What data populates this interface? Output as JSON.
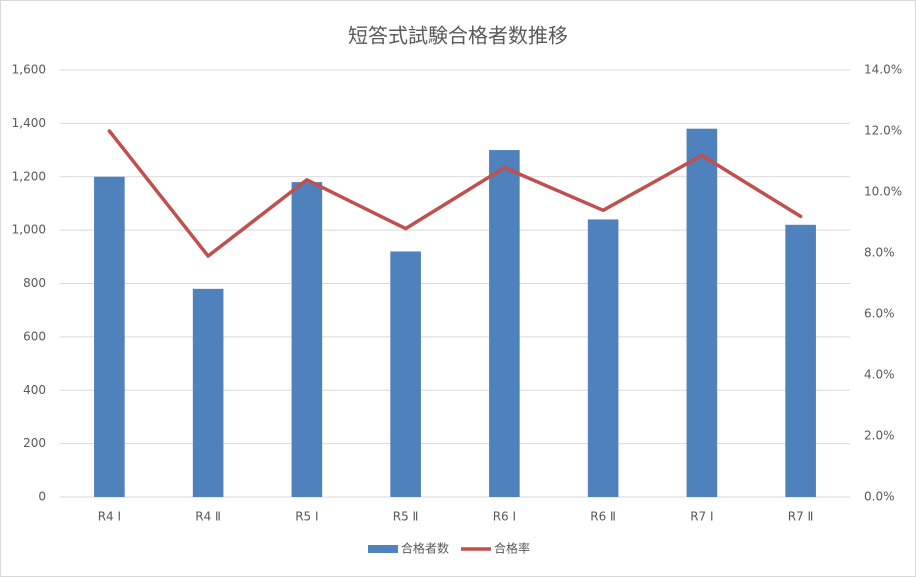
{
  "chart_data": {
    "type": "combo",
    "title": "短答式試験合格者数推移",
    "categories": [
      "R4 Ⅰ",
      "R4 Ⅱ",
      "R5 Ⅰ",
      "R5 Ⅱ",
      "R6 Ⅰ",
      "R6 Ⅱ",
      "R7 Ⅰ",
      "R7 Ⅱ"
    ],
    "series": [
      {
        "name": "合格者数",
        "type": "bar",
        "color": "#4f81bd",
        "values": [
          1200,
          780,
          1180,
          920,
          1300,
          1040,
          1380,
          1020
        ]
      },
      {
        "name": "合格率",
        "type": "line",
        "axis": "y2",
        "color": "#c0504d",
        "values": [
          12.0,
          7.9,
          10.4,
          8.8,
          10.8,
          9.4,
          11.2,
          9.2
        ]
      }
    ],
    "ylim": [
      0,
      1600
    ],
    "yticks": [
      0,
      200,
      400,
      600,
      800,
      {
        "value": 1000,
        "label": "1,000"
      },
      {
        "value": 1200,
        "label": "1,200"
      },
      {
        "value": 1400,
        "label": "1,400"
      },
      {
        "value": 1600,
        "label": "1,600"
      }
    ],
    "y2lim": [
      0,
      14
    ],
    "y2ticks": [
      {
        "value": 0,
        "label": "0.0%"
      },
      {
        "value": 2,
        "label": "2.0%"
      },
      {
        "value": 4,
        "label": "4.0%"
      },
      {
        "value": 6,
        "label": "6.0%"
      },
      {
        "value": 8,
        "label": "8.0%"
      },
      {
        "value": 10,
        "label": "10.0%"
      },
      {
        "value": 12,
        "label": "12.0%"
      },
      {
        "value": 14,
        "label": "14.0%"
      }
    ],
    "grid": true,
    "legend": "bottom"
  }
}
